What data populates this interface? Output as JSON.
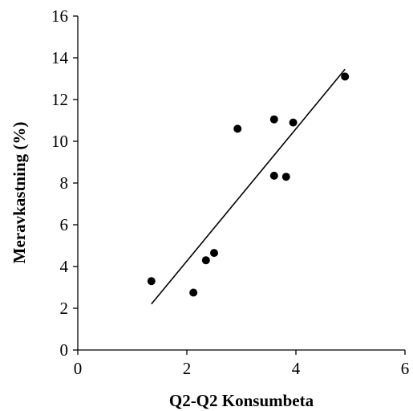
{
  "chart_data": {
    "type": "scatter",
    "title": "",
    "xlabel": "Q2-Q2 Konsumbeta",
    "ylabel": "Meravkastning (%)",
    "xlim": [
      0,
      6
    ],
    "ylim": [
      0,
      16
    ],
    "x_ticks": [
      "0",
      "2",
      "4",
      "6"
    ],
    "y_ticks": [
      "0",
      "2",
      "4",
      "6",
      "8",
      "10",
      "12",
      "14",
      "16"
    ],
    "grid": false,
    "legend": "none",
    "colors": {
      "points": "#000000",
      "trendline": "#000000",
      "axes": "#000000"
    },
    "points": [
      {
        "x": 1.35,
        "y": 3.3
      },
      {
        "x": 2.12,
        "y": 2.75
      },
      {
        "x": 2.35,
        "y": 4.3
      },
      {
        "x": 2.5,
        "y": 4.65
      },
      {
        "x": 2.93,
        "y": 10.6
      },
      {
        "x": 3.6,
        "y": 11.05
      },
      {
        "x": 3.6,
        "y": 8.35
      },
      {
        "x": 3.82,
        "y": 8.3
      },
      {
        "x": 3.95,
        "y": 10.9
      },
      {
        "x": 4.9,
        "y": 13.1
      }
    ],
    "trendline": {
      "type": "linear",
      "start": {
        "x": 1.35,
        "y": 2.2
      },
      "end": {
        "x": 4.9,
        "y": 13.45
      }
    }
  }
}
